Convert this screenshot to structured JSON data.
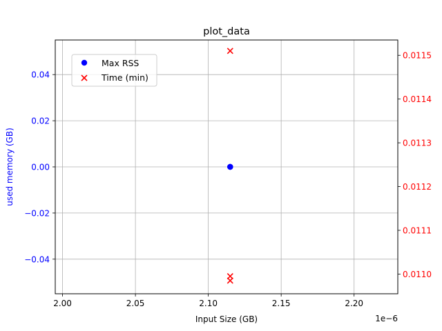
{
  "chart_data": {
    "type": "scatter",
    "title": "plot_data",
    "xlabel": "Input Size (GB)",
    "x_offset_text": "1e−6",
    "xlim": [
      1.995,
      2.23
    ],
    "x_ticks": [
      2.0,
      2.05,
      2.1,
      2.15,
      2.2
    ],
    "x_tick_labels": [
      "2.00",
      "2.05",
      "2.10",
      "2.15",
      "2.20"
    ],
    "left_axis": {
      "label": "used memory (GB)",
      "color": "#0000ff",
      "ylim": [
        -0.055,
        0.055
      ],
      "ticks": [
        -0.04,
        -0.02,
        0.0,
        0.02,
        0.04
      ],
      "tick_labels": [
        "−0.04",
        "−0.02",
        "0.00",
        "0.02",
        "0.04"
      ]
    },
    "right_axis": {
      "label": "",
      "color": "#ff0000",
      "ylim": [
        0.010955,
        0.011535
      ],
      "ticks": [
        0.011,
        0.0111,
        0.0112,
        0.0113,
        0.0114,
        0.0115
      ],
      "tick_labels": [
        "0.0110",
        "0.0111",
        "0.0112",
        "0.0113",
        "0.0114",
        "0.0115"
      ]
    },
    "grid": true,
    "legend_position": "upper-left",
    "series": [
      {
        "name": "Max RSS",
        "axis": "left",
        "marker": "circle",
        "color": "#0000ff",
        "points": [
          {
            "x": 2.115,
            "y": 0.0
          },
          {
            "x": 2.115,
            "y": 0.0
          },
          {
            "x": 2.115,
            "y": 0.0
          }
        ]
      },
      {
        "name": "Time (min)",
        "axis": "right",
        "marker": "x",
        "color": "#ff0000",
        "points": [
          {
            "x": 2.115,
            "y": 0.01151
          },
          {
            "x": 2.115,
            "y": 0.010995
          },
          {
            "x": 2.115,
            "y": 0.010985
          }
        ]
      }
    ]
  }
}
